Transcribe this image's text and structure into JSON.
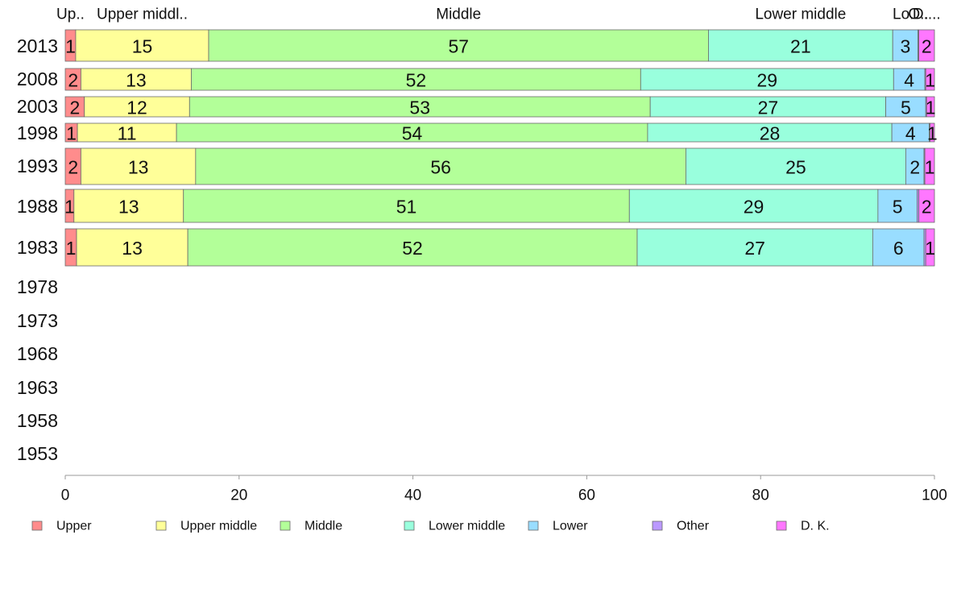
{
  "chart_data": {
    "type": "bar",
    "orientation": "horizontal",
    "stacked": true,
    "xlim": [
      0,
      100
    ],
    "xticks": [
      "0",
      "20",
      "40",
      "60",
      "80",
      "100"
    ],
    "legend_position": "bottom",
    "top_labels": [
      "Up..",
      "Upper middl..",
      "Middle",
      "Lower middle",
      "Lo..",
      "O..",
      "D...."
    ],
    "categories": [
      "2013",
      "2008",
      "2003",
      "1998",
      "1993",
      "1988",
      "1983",
      "1978",
      "1973",
      "1968",
      "1963",
      "1958",
      "1953"
    ],
    "series": [
      {
        "name": "Upper",
        "color": "#ff8c8c",
        "values": [
          1.2,
          1.8,
          2.2,
          1.4,
          1.8,
          1.0,
          1.3,
          null,
          null,
          null,
          null,
          null,
          null
        ],
        "labels": [
          "1",
          "2",
          "2",
          "1",
          "2",
          "1",
          "1",
          "",
          "",
          "",
          "",
          "",
          ""
        ]
      },
      {
        "name": "Upper middle",
        "color": "#ffff99",
        "values": [
          15.3,
          12.7,
          12.1,
          11.4,
          13.2,
          12.6,
          12.8,
          null,
          null,
          null,
          null,
          null,
          null
        ],
        "labels": [
          "15",
          "13",
          "12",
          "11",
          "13",
          "13",
          "13",
          "",
          "",
          "",
          "",
          "",
          ""
        ]
      },
      {
        "name": "Middle",
        "color": "#b3ff99",
        "values": [
          57.5,
          51.7,
          53.0,
          54.2,
          56.4,
          51.3,
          51.7,
          null,
          null,
          null,
          null,
          null,
          null
        ],
        "labels": [
          "57",
          "52",
          "53",
          "54",
          "56",
          "51",
          "52",
          "",
          "",
          "",
          "",
          "",
          ""
        ]
      },
      {
        "name": "Lower middle",
        "color": "#99ffdd",
        "values": [
          21.2,
          29.1,
          27.1,
          28.1,
          25.3,
          28.6,
          27.1,
          null,
          null,
          null,
          null,
          null,
          null
        ],
        "labels": [
          "21",
          "29",
          "27",
          "28",
          "25",
          "29",
          "27",
          "",
          "",
          "",
          "",
          "",
          ""
        ]
      },
      {
        "name": "Lower",
        "color": "#99ddff",
        "values": [
          2.9,
          3.6,
          4.6,
          4.3,
          2.1,
          4.5,
          5.9,
          null,
          null,
          null,
          null,
          null,
          null
        ],
        "labels": [
          "3",
          "4",
          "5",
          "4",
          "2",
          "5",
          "6",
          "",
          "",
          "",
          "",
          "",
          ""
        ]
      },
      {
        "name": "Other",
        "color": "#bb99ff",
        "values": [
          0.1,
          0.1,
          0.1,
          0.1,
          0.1,
          0.2,
          0.2,
          null,
          null,
          null,
          null,
          null,
          null
        ],
        "labels": [
          "",
          "",
          "",
          "",
          "",
          "",
          "",
          "",
          "",
          "",
          "",
          "",
          ""
        ]
      },
      {
        "name": "D. K.",
        "color": "#ff77ff",
        "values": [
          1.8,
          1.0,
          0.9,
          0.5,
          1.1,
          1.8,
          1.0,
          null,
          null,
          null,
          null,
          null,
          null
        ],
        "labels": [
          "2",
          "1",
          "1",
          "1",
          "1",
          "2",
          "1",
          "",
          "",
          "",
          "",
          "",
          ""
        ]
      }
    ]
  }
}
